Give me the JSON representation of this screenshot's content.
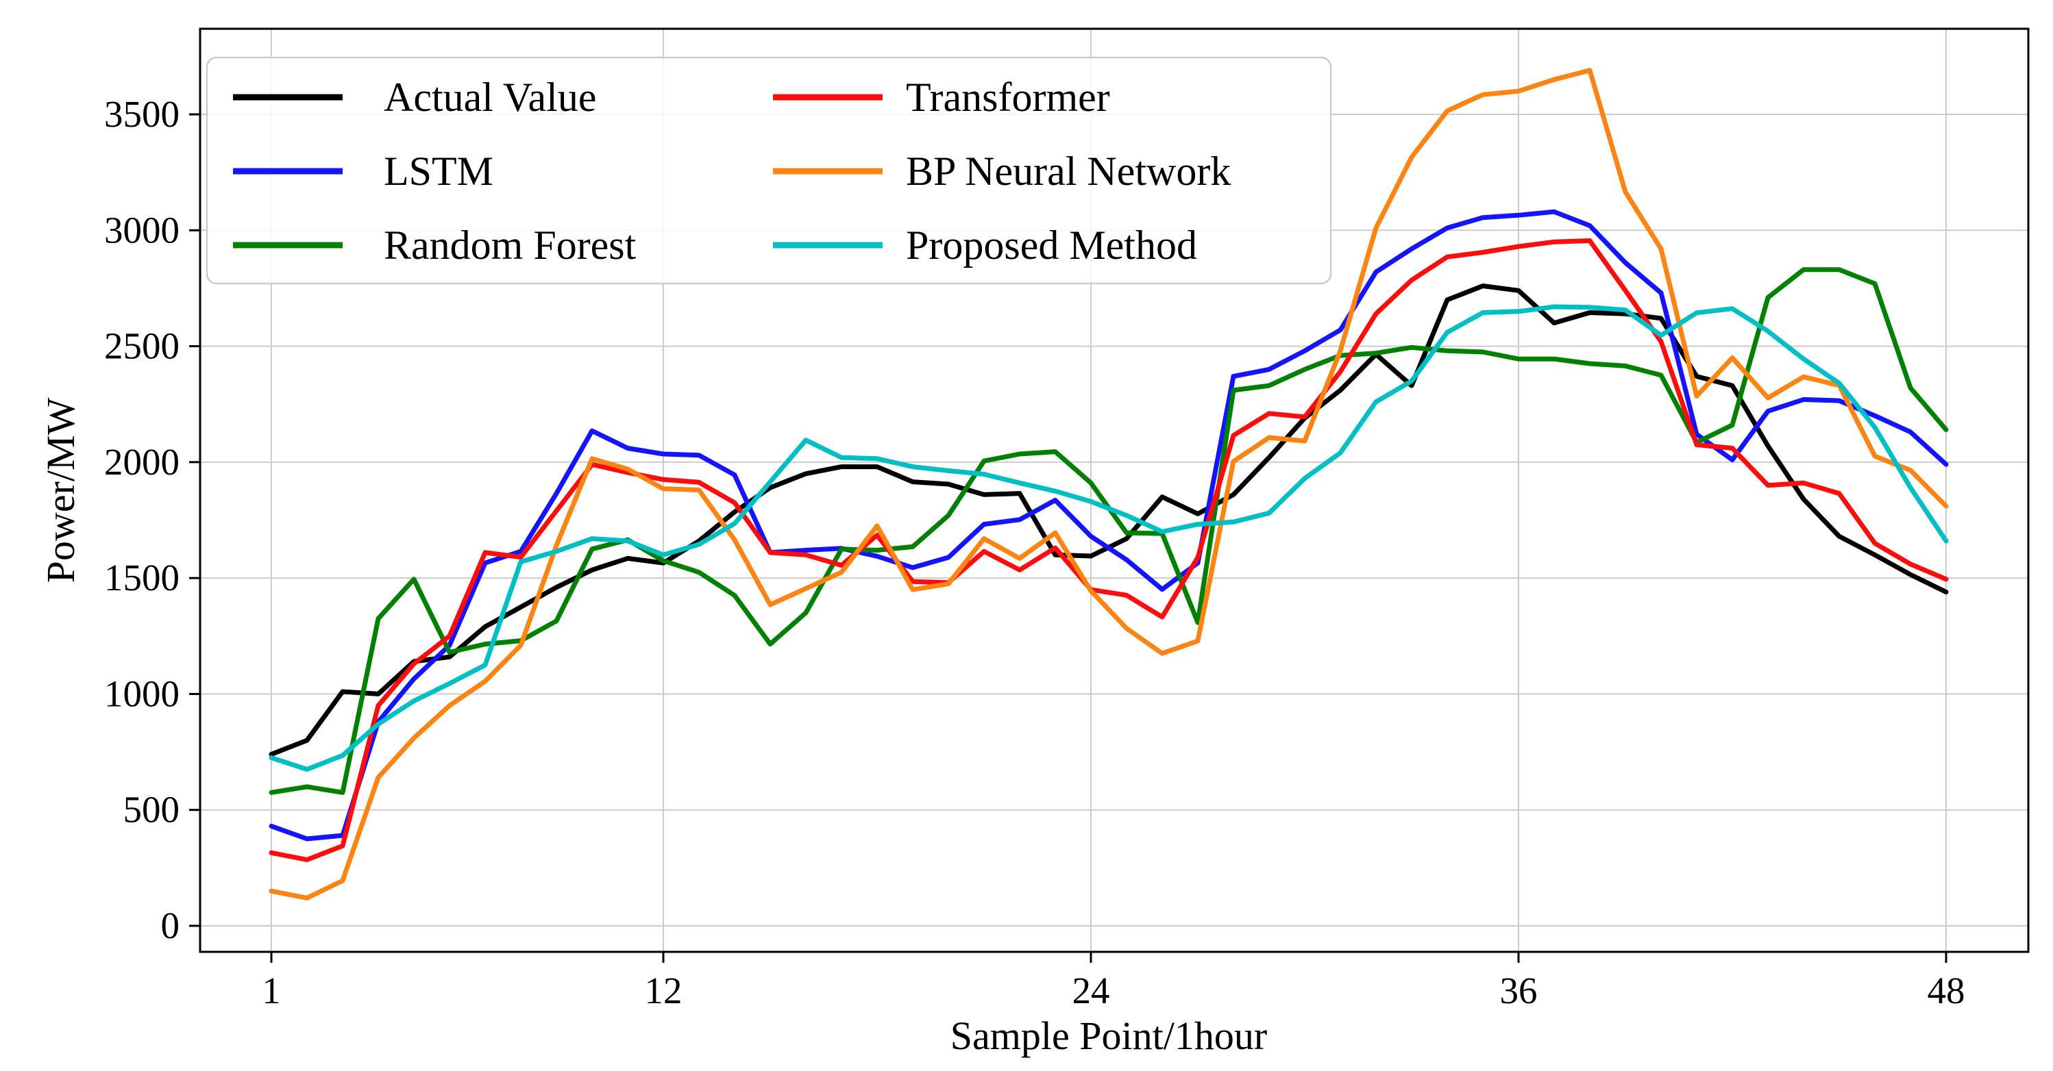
{
  "chart_data": {
    "type": "line",
    "title": "",
    "xlabel": "Sample Point/1hour",
    "ylabel": "Power/MW",
    "x_ticks": [
      1,
      12,
      24,
      36,
      48
    ],
    "y_ticks": [
      0,
      500,
      1000,
      1500,
      2000,
      2500,
      3000,
      3500
    ],
    "xlim": [
      1,
      48
    ],
    "ylim": [
      0,
      3500
    ],
    "grid": true,
    "legend_position": "upper-left",
    "x": [
      1,
      2,
      3,
      4,
      5,
      6,
      7,
      8,
      9,
      10,
      11,
      12,
      13,
      14,
      15,
      16,
      17,
      18,
      19,
      20,
      21,
      22,
      23,
      24,
      25,
      26,
      27,
      28,
      29,
      30,
      31,
      32,
      33,
      34,
      35,
      36,
      37,
      38,
      39,
      40,
      41,
      42,
      43,
      44,
      45,
      46,
      47,
      48
    ],
    "series": [
      {
        "name": "Actual Value",
        "color": "#000000",
        "values": [
          740,
          800,
          1010,
          1000,
          1140,
          1160,
          1290,
          1375,
          1460,
          1535,
          1585,
          1565,
          1660,
          1785,
          1890,
          1950,
          1980,
          1980,
          1915,
          1905,
          1860,
          1865,
          1600,
          1595,
          1670,
          1850,
          1777,
          1860,
          2020,
          2190,
          2310,
          2465,
          2330,
          2700,
          2760,
          2740,
          2600,
          2645,
          2640,
          2620,
          2370,
          2330,
          2070,
          1840,
          1680,
          1600,
          1515,
          1440
        ]
      },
      {
        "name": "LSTM",
        "color": "#1414ff",
        "values": [
          430,
          375,
          390,
          880,
          1065,
          1210,
          1565,
          1615,
          1865,
          2135,
          2060,
          2035,
          2030,
          1945,
          1610,
          1620,
          1628,
          1594,
          1545,
          1589,
          1732,
          1752,
          1836,
          1680,
          1579,
          1451,
          1565,
          2370,
          2400,
          2480,
          2570,
          2820,
          2920,
          3010,
          3055,
          3065,
          3080,
          3020,
          2860,
          2730,
          2120,
          2010,
          2220,
          2270,
          2265,
          2200,
          2130,
          1990
        ]
      },
      {
        "name": "Random Forest",
        "color": "#008000",
        "values": [
          575,
          600,
          575,
          1325,
          1495,
          1180,
          1215,
          1230,
          1315,
          1625,
          1665,
          1575,
          1525,
          1425,
          1215,
          1350,
          1625,
          1620,
          1635,
          1770,
          2005,
          2035,
          2045,
          1910,
          1695,
          1692,
          1308,
          2310,
          2330,
          2400,
          2460,
          2470,
          2495,
          2480,
          2475,
          2445,
          2445,
          2425,
          2415,
          2375,
          2085,
          2160,
          2710,
          2830,
          2830,
          2770,
          2320,
          2140
        ]
      },
      {
        "name": "Transformer",
        "color": "#ff0d0d",
        "values": [
          315,
          285,
          345,
          950,
          1130,
          1250,
          1610,
          1590,
          1790,
          1990,
          1955,
          1925,
          1913,
          1825,
          1610,
          1600,
          1555,
          1685,
          1485,
          1480,
          1615,
          1535,
          1630,
          1450,
          1426,
          1332,
          1589,
          2115,
          2210,
          2195,
          2390,
          2640,
          2785,
          2885,
          2905,
          2930,
          2950,
          2955,
          2740,
          2520,
          2075,
          2060,
          1900,
          1910,
          1865,
          1650,
          1560,
          1495
        ]
      },
      {
        "name": "BP Neural Network",
        "color": "#ff8414",
        "values": [
          150,
          120,
          195,
          640,
          810,
          950,
          1055,
          1210,
          1640,
          2015,
          1970,
          1885,
          1880,
          1665,
          1385,
          1455,
          1525,
          1725,
          1450,
          1475,
          1670,
          1585,
          1695,
          1445,
          1283,
          1175,
          1229,
          2003,
          2106,
          2091,
          2480,
          3010,
          3315,
          3515,
          3585,
          3600,
          3650,
          3690,
          3165,
          2920,
          2285,
          2450,
          2277,
          2368,
          2331,
          2026,
          1965,
          1810
        ]
      },
      {
        "name": "Proposed Method",
        "color": "#00bfc4",
        "values": [
          725,
          675,
          735,
          870,
          970,
          1045,
          1125,
          1570,
          1615,
          1670,
          1660,
          1600,
          1645,
          1735,
          1915,
          2095,
          2020,
          2015,
          1980,
          1963,
          1948,
          1910,
          1875,
          1830,
          1770,
          1700,
          1732,
          1742,
          1780,
          1930,
          2040,
          2260,
          2350,
          2560,
          2645,
          2650,
          2670,
          2668,
          2656,
          2547,
          2644,
          2662,
          2565,
          2445,
          2340,
          2150,
          1890,
          1660
        ]
      }
    ]
  },
  "layout_labels": {
    "ylabel": "Power/MW",
    "xlabel": "Sample Point/1hour"
  }
}
